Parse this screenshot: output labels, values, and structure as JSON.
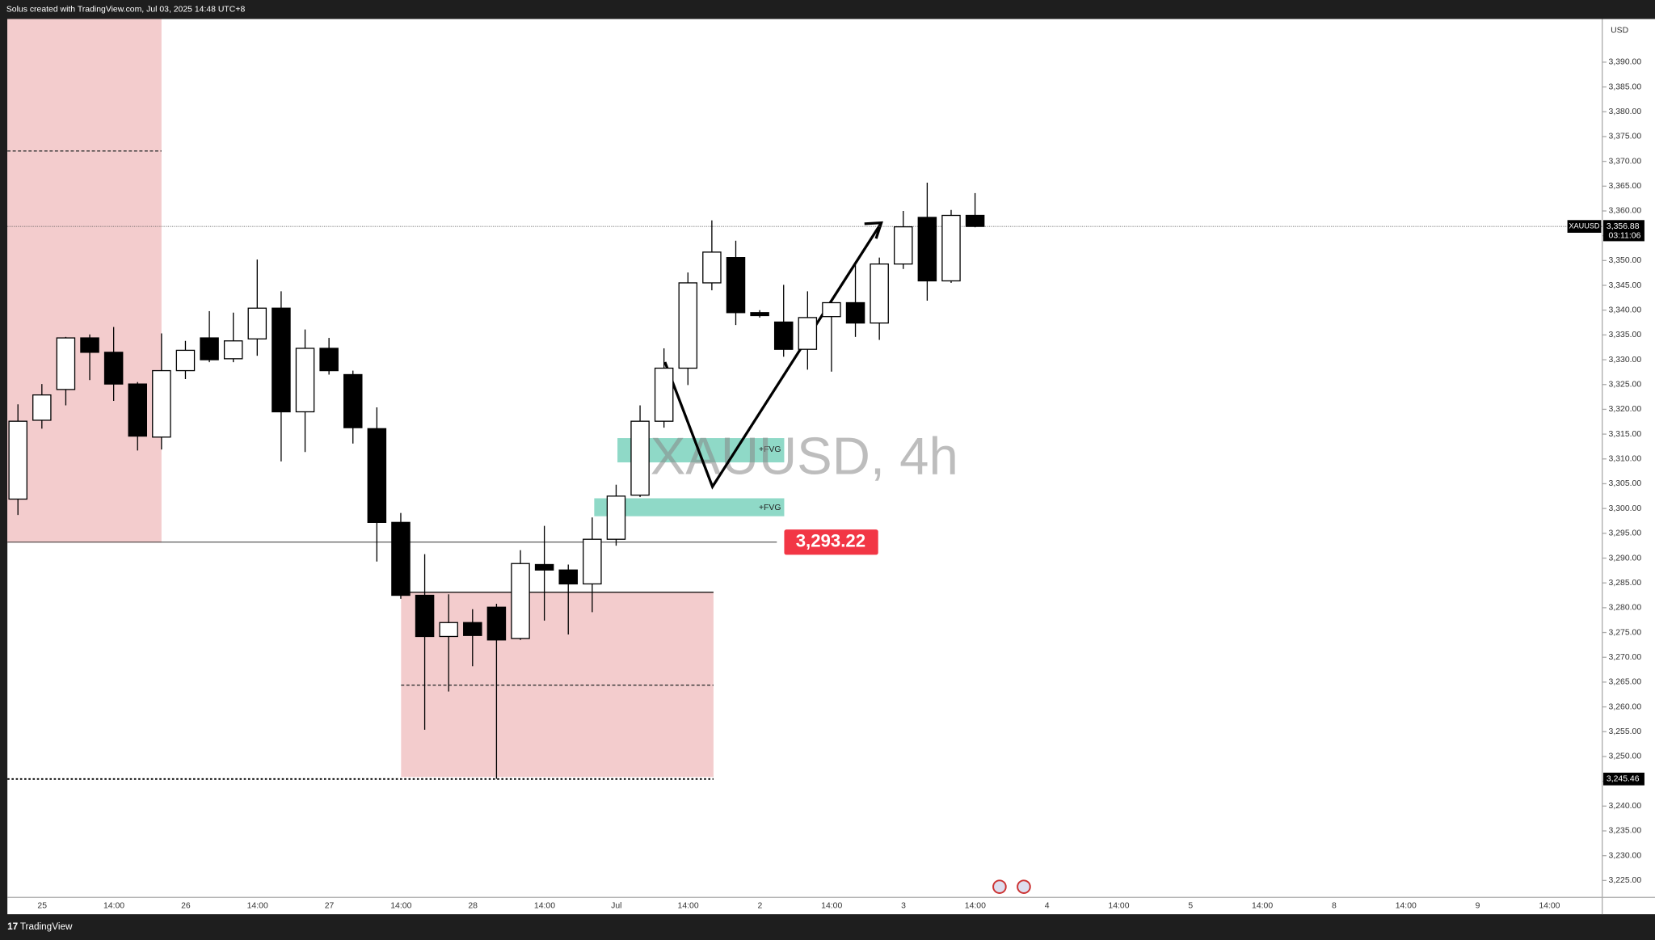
{
  "chart_data": {
    "type": "candlestick",
    "header": "Solus created with TradingView.com, Jul 03, 2025 14:48 UTC+8",
    "footer": "TradingView",
    "watermark": "XAUUSD, 4h",
    "currency": "USD",
    "symbol": "XAUUSD",
    "countdown": "03:11:06",
    "last_price": {
      "value": 3356.88,
      "label": "3,356.88"
    },
    "low_level": {
      "value": 3245.46,
      "label": "3,245.46"
    },
    "key_level": {
      "value": 3293.22,
      "label": "3,293.22"
    },
    "fvg_labels": [
      "+FVG",
      "+FVG"
    ],
    "up_color": "#ffffff",
    "down_color": "#000000",
    "open": [
      3301.9,
      3317.8,
      3324.0,
      3334.4,
      3331.5,
      3325.1,
      3314.4,
      3327.8,
      3334.4,
      3330.2,
      3334.2,
      3340.4,
      3319.5,
      3332.3,
      3327.0,
      3316.1,
      3297.2,
      3282.5,
      3274.2,
      3277.0,
      3280.1,
      3273.8,
      3288.7,
      3287.6,
      3284.8,
      3293.8,
      3302.7,
      3317.6,
      3328.3,
      3345.5,
      3350.6,
      3339.5,
      3337.6,
      3332.1,
      3338.7,
      3341.5,
      3337.4,
      3349.3,
      3358.7,
      3345.9,
      3359.1
    ],
    "high": [
      3321.0,
      3325.1,
      3334.6,
      3335.1,
      3336.6,
      3325.5,
      3335.3,
      3333.8,
      3339.8,
      3339.5,
      3350.2,
      3343.8,
      3336.1,
      3334.4,
      3327.8,
      3320.4,
      3299.1,
      3290.8,
      3282.7,
      3279.7,
      3280.8,
      3291.6,
      3296.5,
      3288.7,
      3298.2,
      3304.8,
      3320.8,
      3332.3,
      3347.6,
      3358.1,
      3354.0,
      3340.0,
      3345.1,
      3343.8,
      3342.1,
      3349.8,
      3350.6,
      3360.0,
      3365.7,
      3360.2,
      3363.6
    ],
    "low": [
      3298.7,
      3316.1,
      3320.8,
      3325.9,
      3321.7,
      3311.7,
      3311.9,
      3326.1,
      3329.5,
      3329.5,
      3330.8,
      3309.5,
      3311.4,
      3327.0,
      3313.1,
      3289.3,
      3281.8,
      3255.4,
      3263.1,
      3268.2,
      3245.5,
      3273.5,
      3277.4,
      3274.6,
      3279.1,
      3292.5,
      3302.3,
      3316.3,
      3324.9,
      3344.0,
      3337.0,
      3338.5,
      3330.6,
      3328.0,
      3327.6,
      3334.6,
      3334.0,
      3348.3,
      3341.9,
      3345.5,
      3356.7
    ],
    "close": [
      3317.6,
      3322.9,
      3334.4,
      3331.5,
      3325.1,
      3314.6,
      3327.8,
      3331.9,
      3330.0,
      3333.8,
      3340.4,
      3319.5,
      3332.3,
      3327.8,
      3316.3,
      3297.2,
      3282.5,
      3274.2,
      3277.0,
      3274.4,
      3273.5,
      3288.9,
      3287.6,
      3284.8,
      3293.8,
      3302.5,
      3317.6,
      3328.3,
      3345.5,
      3351.7,
      3339.5,
      3338.9,
      3332.1,
      3338.5,
      3341.5,
      3337.4,
      3349.3,
      3356.8,
      3345.9,
      3359.1,
      3356.88
    ],
    "xtick_labels": [
      "25",
      "14:00",
      "26",
      "14:00",
      "27",
      "14:00",
      "28",
      "14:00",
      "Jul",
      "14:00",
      "2",
      "14:00",
      "3",
      "14:00",
      "4",
      "14:00",
      "5",
      "14:00",
      "8",
      "14:00",
      "9",
      "14:00"
    ],
    "ylim": [
      3221.6,
      3398.7
    ],
    "yticks": [
      {
        "value": 3225,
        "label": "3,225.00"
      },
      {
        "value": 3230,
        "label": "3,230.00"
      },
      {
        "value": 3235,
        "label": "3,235.00"
      },
      {
        "value": 3240,
        "label": "3,240.00"
      },
      {
        "value": 3245,
        "label": "3,245.00"
      },
      {
        "value": 3250,
        "label": "3,250.00"
      },
      {
        "value": 3255,
        "label": "3,255.00"
      },
      {
        "value": 3260,
        "label": "3,260.00"
      },
      {
        "value": 3265,
        "label": "3,265.00"
      },
      {
        "value": 3270,
        "label": "3,270.00"
      },
      {
        "value": 3275,
        "label": "3,275.00"
      },
      {
        "value": 3280,
        "label": "3,280.00"
      },
      {
        "value": 3285,
        "label": "3,285.00"
      },
      {
        "value": 3290,
        "label": "3,290.00"
      },
      {
        "value": 3295,
        "label": "3,295.00"
      },
      {
        "value": 3300,
        "label": "3,300.00"
      },
      {
        "value": 3305,
        "label": "3,305.00"
      },
      {
        "value": 3310,
        "label": "3,310.00"
      },
      {
        "value": 3315,
        "label": "3,315.00"
      },
      {
        "value": 3320,
        "label": "3,320.00"
      },
      {
        "value": 3325,
        "label": "3,325.00"
      },
      {
        "value": 3330,
        "label": "3,330.00"
      },
      {
        "value": 3335,
        "label": "3,335.00"
      },
      {
        "value": 3340,
        "label": "3,340.00"
      },
      {
        "value": 3345,
        "label": "3,345.00"
      },
      {
        "value": 3350,
        "label": "3,350.00"
      },
      {
        "value": 3355,
        "label": "3,355.00"
      },
      {
        "value": 3360,
        "label": "3,360.00"
      },
      {
        "value": 3365,
        "label": "3,365.00"
      },
      {
        "value": 3370,
        "label": "3,370.00"
      },
      {
        "value": 3375,
        "label": "3,375.00"
      },
      {
        "value": 3380,
        "label": "3,380.00"
      },
      {
        "value": 3385,
        "label": "3,385.00"
      },
      {
        "value": 3390,
        "label": "3,390.00"
      }
    ],
    "grid": false
  }
}
